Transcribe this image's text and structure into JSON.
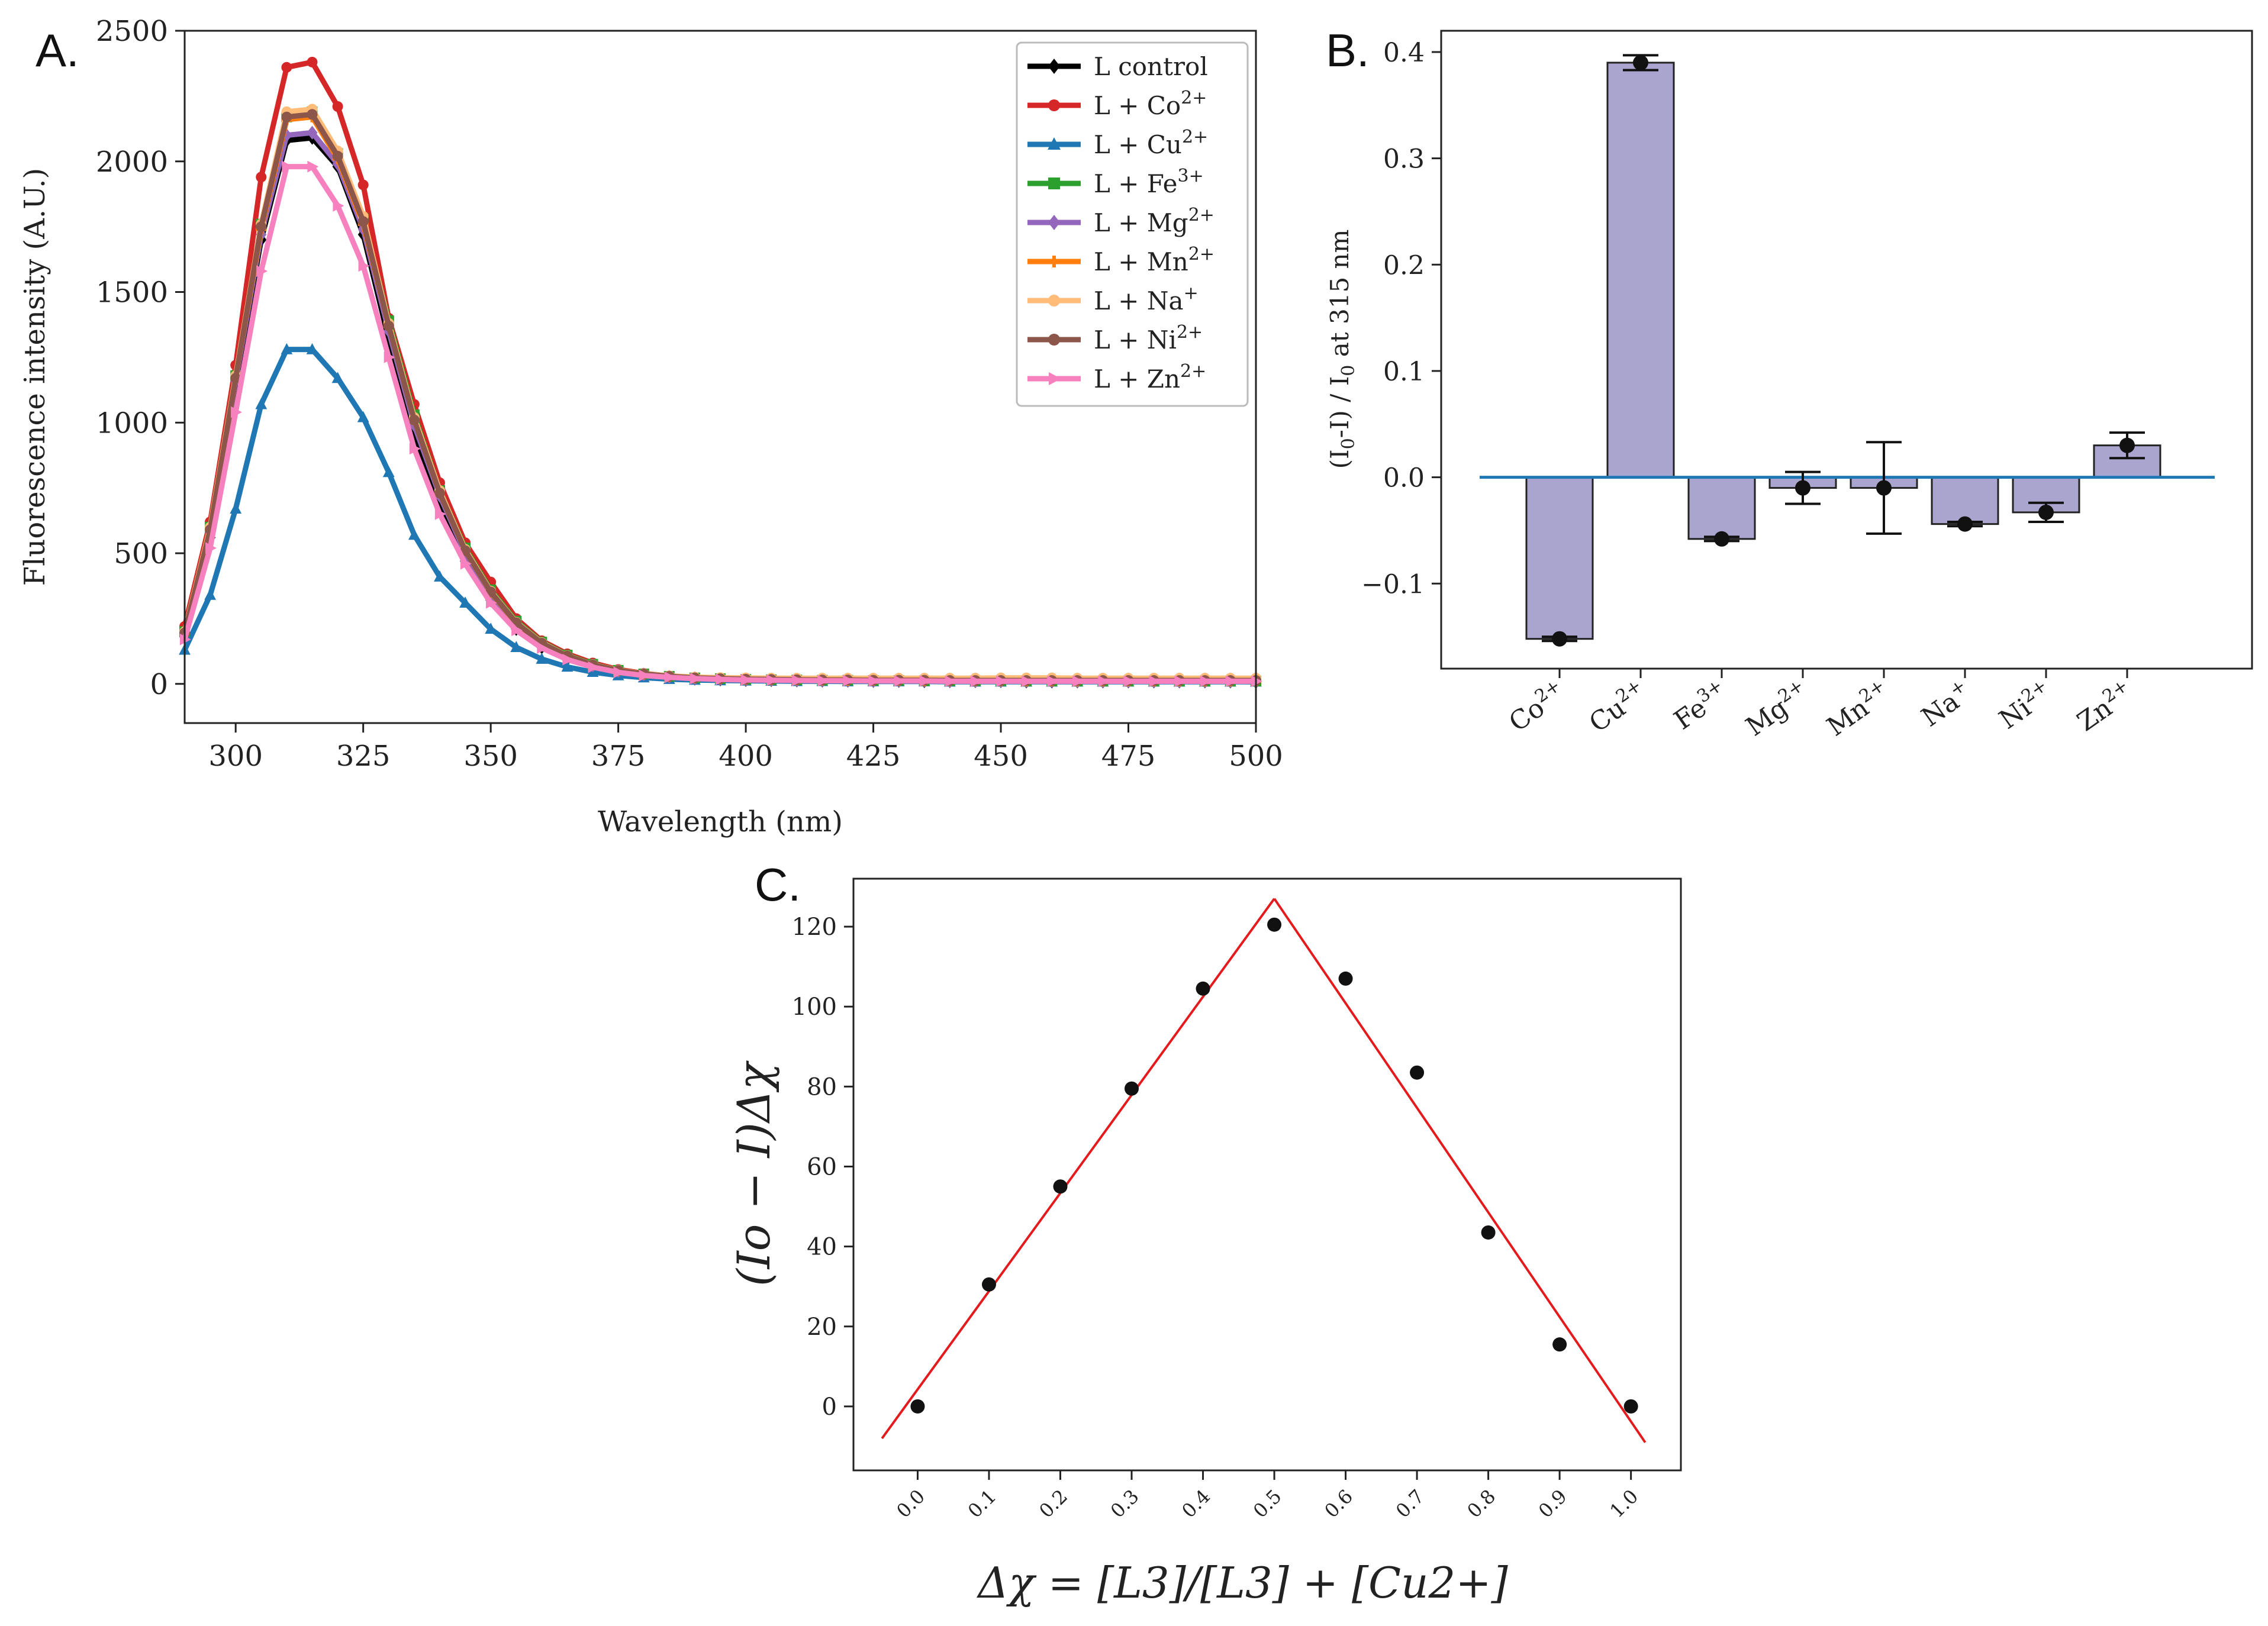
{
  "chart_data": [
    {
      "panel": "A.",
      "type": "line",
      "xlabel": "Wavelength (nm)",
      "ylabel": "Fluorescence intensity (A.U.)",
      "xlim": [
        290,
        500
      ],
      "ylim": [
        -150,
        2500
      ],
      "xticks": [
        "300",
        "325",
        "350",
        "375",
        "400",
        "425",
        "450",
        "475",
        "500"
      ],
      "yticks": [
        "0",
        "500",
        "1000",
        "1500",
        "2000",
        "2500"
      ],
      "legend_position": "top-right",
      "x": [
        290,
        295,
        300,
        305,
        310,
        315,
        320,
        325,
        330,
        335,
        340,
        345,
        350,
        355,
        360,
        365,
        370,
        375,
        380,
        385,
        390,
        395,
        400,
        405,
        410,
        415,
        420,
        425,
        430,
        435,
        440,
        445,
        450,
        455,
        460,
        465,
        470,
        475,
        480,
        485,
        490,
        495,
        500
      ],
      "series": [
        {
          "name": "L  control",
          "color": "#000000",
          "marker": "diamond",
          "values": [
            180,
            560,
            1150,
            1700,
            2080,
            2090,
            1980,
            1720,
            1320,
            960,
            690,
            470,
            320,
            210,
            140,
            95,
            65,
            45,
            32,
            25,
            20,
            17,
            15,
            14,
            13,
            12,
            12,
            11,
            11,
            10,
            10,
            10,
            10,
            9,
            9,
            9,
            9,
            9,
            9,
            9,
            9,
            9,
            8
          ]
        },
        {
          "name": "L  + Co2+",
          "color": "#d62728",
          "marker": "circle",
          "values": [
            220,
            620,
            1220,
            1940,
            2360,
            2380,
            2210,
            1910,
            1400,
            1070,
            770,
            540,
            390,
            250,
            165,
            115,
            80,
            55,
            40,
            30,
            24,
            20,
            18,
            16,
            15,
            14,
            13,
            13,
            12,
            12,
            12,
            11,
            11,
            11,
            11,
            10,
            10,
            10,
            10,
            10,
            10,
            10,
            10
          ]
        },
        {
          "name": "L  + Cu2+",
          "color": "#1f77b4",
          "marker": "triangle-up",
          "values": [
            130,
            340,
            670,
            1070,
            1280,
            1280,
            1170,
            1020,
            810,
            570,
            410,
            310,
            210,
            140,
            95,
            65,
            45,
            32,
            24,
            18,
            15,
            13,
            12,
            11,
            10,
            10,
            9,
            9,
            9,
            9,
            8,
            8,
            8,
            8,
            8,
            8,
            8,
            8,
            8,
            8,
            8,
            8,
            8
          ]
        },
        {
          "name": "L  + Fe3+",
          "color": "#2ca02c",
          "marker": "square",
          "values": [
            200,
            600,
            1180,
            1760,
            2170,
            2190,
            2030,
            1780,
            1390,
            1030,
            740,
            520,
            360,
            240,
            160,
            110,
            75,
            52,
            38,
            29,
            23,
            20,
            17,
            16,
            15,
            14,
            14,
            13,
            13,
            12,
            12,
            12,
            12,
            11,
            11,
            11,
            11,
            11,
            11,
            11,
            11,
            11,
            11
          ]
        },
        {
          "name": "L  + Mg2+",
          "color": "#9467bd",
          "marker": "diamond",
          "values": [
            190,
            580,
            1160,
            1720,
            2100,
            2110,
            1990,
            1740,
            1350,
            990,
            720,
            500,
            340,
            225,
            150,
            103,
            70,
            49,
            36,
            27,
            22,
            19,
            17,
            15,
            14,
            13,
            13,
            12,
            12,
            12,
            11,
            11,
            11,
            11,
            11,
            10,
            10,
            10,
            10,
            10,
            10,
            10,
            10
          ]
        },
        {
          "name": "L  + Mn2+",
          "color": "#ff7f0e",
          "marker": "plus",
          "values": [
            195,
            590,
            1170,
            1740,
            2160,
            2170,
            2010,
            1760,
            1370,
            1010,
            730,
            510,
            350,
            232,
            155,
            106,
            72,
            50,
            37,
            28,
            22,
            19,
            17,
            16,
            15,
            14,
            13,
            13,
            13,
            12,
            12,
            12,
            12,
            11,
            11,
            11,
            11,
            11,
            11,
            11,
            11,
            11,
            11
          ]
        },
        {
          "name": "L  + Na+",
          "color": "#ffbb78",
          "marker": "circle",
          "values": [
            200,
            600,
            1180,
            1760,
            2190,
            2200,
            2040,
            1790,
            1380,
            1020,
            740,
            515,
            355,
            236,
            158,
            108,
            74,
            52,
            39,
            31,
            26,
            24,
            23,
            22,
            22,
            22,
            22,
            22,
            22,
            22,
            22,
            22,
            23,
            23,
            23,
            22,
            22,
            22,
            22,
            22,
            22,
            22,
            22
          ]
        },
        {
          "name": "L  + Ni2+",
          "color": "#8c564b",
          "marker": "circle",
          "values": [
            195,
            590,
            1170,
            1750,
            2170,
            2180,
            2020,
            1770,
            1370,
            1010,
            730,
            510,
            352,
            234,
            156,
            107,
            73,
            51,
            38,
            29,
            23,
            20,
            18,
            17,
            16,
            15,
            15,
            14,
            14,
            14,
            13,
            13,
            13,
            13,
            13,
            13,
            13,
            13,
            13,
            13,
            13,
            13,
            13
          ]
        },
        {
          "name": "L  + Zn2+",
          "color": "#f781bf",
          "marker": "triangle-right",
          "values": [
            170,
            520,
            1040,
            1580,
            1980,
            1980,
            1830,
            1600,
            1250,
            900,
            650,
            460,
            310,
            205,
            137,
            93,
            64,
            44,
            32,
            25,
            20,
            17,
            15,
            14,
            13,
            12,
            12,
            11,
            11,
            11,
            10,
            10,
            10,
            10,
            10,
            10,
            10,
            10,
            10,
            10,
            10,
            10,
            10
          ]
        }
      ]
    },
    {
      "panel": "B.",
      "type": "bar",
      "ylabel": "(I0-I) / I0 at 315 nm",
      "ylim": [
        -0.18,
        0.42
      ],
      "yticks": [
        "−0.1",
        "0.0",
        "0.1",
        "0.2",
        "0.3",
        "0.4"
      ],
      "bar_color": "#aaa5cf",
      "baseline_color": "#1f77b4",
      "categories": [
        "Co2+",
        "Cu2+",
        "Fe3+",
        "Mg2+",
        "Mn2+",
        "Na+",
        "Ni2+",
        "Zn2+"
      ],
      "values": [
        -0.152,
        0.39,
        -0.058,
        -0.01,
        -0.01,
        -0.044,
        -0.033,
        0.03
      ],
      "errors": [
        0.002,
        0.007,
        0.002,
        0.015,
        0.043,
        0.002,
        0.009,
        0.012
      ]
    },
    {
      "panel": "C.",
      "type": "scatter",
      "xlabel": "Δχ = [L3]/[L3] + [Cu2+]",
      "ylabel": "(Io − I)Δχ",
      "xlim": [
        -0.09,
        1.07
      ],
      "ylim": [
        -16,
        132
      ],
      "xticks": [
        "0.0",
        "0.1",
        "0.2",
        "0.3",
        "0.4",
        "0.5",
        "0.6",
        "0.7",
        "0.8",
        "0.9",
        "1.0"
      ],
      "yticks": [
        "0",
        "20",
        "40",
        "60",
        "80",
        "100",
        "120"
      ],
      "x": [
        0.0,
        0.1,
        0.2,
        0.3,
        0.4,
        0.5,
        0.6,
        0.7,
        0.8,
        0.9,
        1.0
      ],
      "y": [
        0,
        30.5,
        55,
        79.5,
        104.5,
        120.5,
        107,
        83.5,
        43.5,
        15.5,
        0
      ],
      "fit_lines": [
        {
          "color": "#e41a1c",
          "from": [
            -0.05,
            -8
          ],
          "to": [
            0.5,
            127
          ]
        },
        {
          "color": "#e41a1c",
          "from": [
            0.5,
            127
          ],
          "to": [
            1.02,
            -9
          ]
        }
      ]
    }
  ]
}
